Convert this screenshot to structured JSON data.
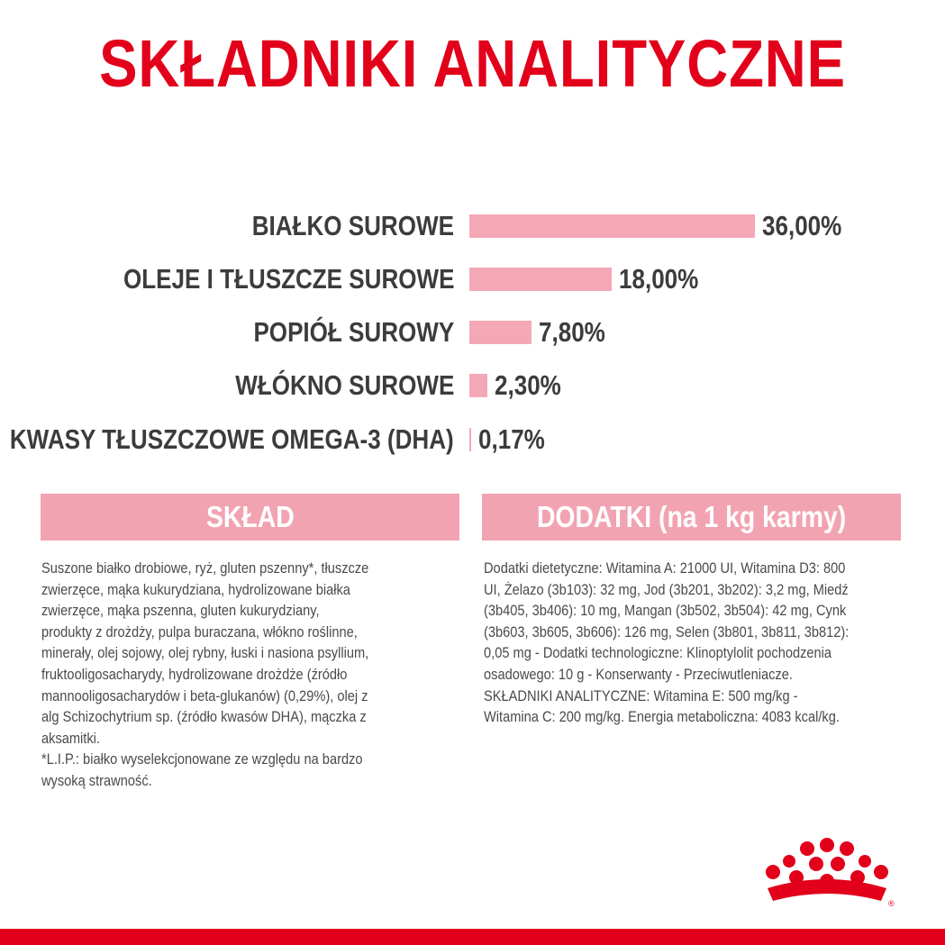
{
  "title": "SKŁADNIKI ANALITYCZNE",
  "chart_data": {
    "type": "bar",
    "orientation": "horizontal",
    "categories": [
      "BIAŁKO SUROWE",
      "OLEJE I TŁUSZCZE SUROWE",
      "POPIÓŁ SUROWY",
      "WŁÓKNO SUROWE",
      "KWASY TŁUSZCZOWE OMEGA-3 (DHA)"
    ],
    "values": [
      36.0,
      18.0,
      7.8,
      2.3,
      0.17
    ],
    "data_labels": [
      "36,00%",
      "18,00%",
      "7,80%",
      "2,30%",
      "0,17%"
    ],
    "unit": "%",
    "bar_color": "#f4a8b6",
    "grid": false
  },
  "sklad": {
    "header": "SKŁAD",
    "lines": [
      "Suszone białko drobiowe, ryż, gluten pszenny*, tłuszcze",
      "zwierzęce, mąka kukurydziana, hydrolizowane białka",
      "zwierzęce, mąka pszenna, gluten kukurydziany,",
      "produkty z drożdży, pulpa buraczana, włókno roślinne,",
      "minerały, olej sojowy, olej rybny, łuski i nasiona psyllium,",
      "fruktooligosacharydy, hydrolizowane drożdże (źródło",
      "mannooligosacharydów i beta-glukanów) (0,29%), olej z",
      "alg Schizochytrium sp. (źródło kwasów DHA), mączka z",
      "aksamitki.",
      "*L.I.P.: białko wyselekcjonowane ze względu na bardzo",
      "wysoką strawność."
    ]
  },
  "dodatki": {
    "header": "DODATKI (na 1 kg karmy)",
    "lines": [
      "Dodatki dietetyczne: Witamina A: 21000 UI, Witamina D3: 800",
      "UI, Żelazo (3b103): 32 mg, Jod (3b201, 3b202): 3,2 mg, Miedź",
      "(3b405, 3b406): 10 mg, Mangan (3b502, 3b504): 42 mg, Cynk",
      "(3b603, 3b605, 3b606): 126 mg, Selen (3b801, 3b811, 3b812):",
      "0,05 mg - Dodatki technologiczne: Klinoptylolit pochodzenia",
      "osadowego: 10 g - Konserwanty - Przeciwutleniacze.",
      "SKŁADNIKI ANALITYCZNE: Witamina E: 500 mg/kg -",
      "Witamina C: 200 mg/kg. Energia metaboliczna: 4083 kcal/kg."
    ]
  },
  "colors": {
    "brand_red": "#e2001a",
    "pink": "#f2a3b2",
    "text": "#4a4a4a"
  },
  "logo": {
    "icon": "crown-logo-icon",
    "mark": "®"
  }
}
